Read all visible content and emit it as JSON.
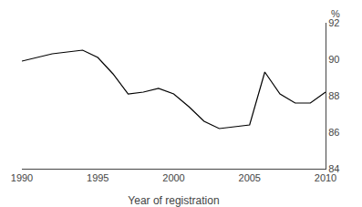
{
  "chart_data": {
    "type": "line",
    "x": [
      1990,
      1991,
      1992,
      1993,
      1994,
      1995,
      1996,
      1997,
      1998,
      1999,
      2000,
      2001,
      2002,
      2003,
      2004,
      2005,
      2006,
      2007,
      2008,
      2009,
      2010
    ],
    "values": [
      89.9,
      90.1,
      90.3,
      90.4,
      90.5,
      90.1,
      89.2,
      88.1,
      88.2,
      88.4,
      88.1,
      87.4,
      86.6,
      86.2,
      86.3,
      86.4,
      89.3,
      88.1,
      87.6,
      87.6,
      88.2
    ],
    "color": "#000000",
    "xlabel": "Year of registration",
    "annotation": "%",
    "xlim": [
      1990,
      2010
    ],
    "ylim": [
      84,
      92
    ],
    "xticks": [
      1990,
      1995,
      2000,
      2005,
      2010
    ],
    "yticks": [
      84,
      86,
      88,
      90,
      92
    ],
    "grid": false
  }
}
